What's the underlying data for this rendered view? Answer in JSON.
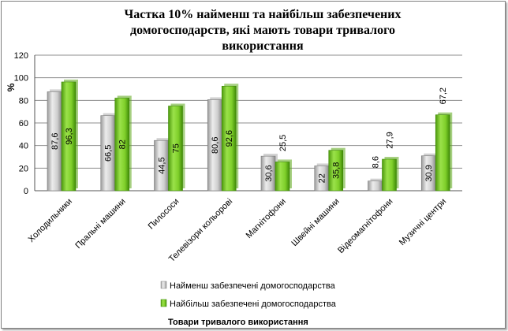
{
  "chart_data": {
    "type": "bar",
    "title_lines": [
      "Частка 10% найменш та найбільш забезпечених",
      "домогосподарств, які мають товари тривалого",
      "використання"
    ],
    "xlabel": "Товари тривалого використання",
    "ylabel": "%",
    "ylim": [
      0,
      120
    ],
    "yticks": [
      "0",
      "20",
      "40",
      "60",
      "80",
      "100",
      "120"
    ],
    "grid": true,
    "legend_position": "bottom",
    "categories": [
      "Холодильники",
      "Пральні машини",
      "Пилососи",
      "Телевізори кольорові",
      "Магнітофони",
      "Швейні машини",
      "Відеомагнітофони",
      "Музичні центри"
    ],
    "series": [
      {
        "name": "Найменш забезпечені домогосподарства",
        "color": "#c8c8c8",
        "values": [
          87.6,
          66.5,
          44.5,
          80.6,
          30.6,
          22,
          8.6,
          30.9
        ],
        "labels": [
          "87,6",
          "66,5",
          "44,5",
          "80,6",
          "30,6",
          "22",
          "8,6",
          "30,9"
        ]
      },
      {
        "name": "Найбільш забезпечені домогосподарства",
        "color": "#7fcf2a",
        "values": [
          96.3,
          82,
          75,
          92.6,
          25.5,
          35.8,
          27.9,
          67.2
        ],
        "labels": [
          "96,3",
          "82",
          "75",
          "92,6",
          "25,5",
          "35,8",
          "27,9",
          "67,2"
        ]
      }
    ]
  }
}
